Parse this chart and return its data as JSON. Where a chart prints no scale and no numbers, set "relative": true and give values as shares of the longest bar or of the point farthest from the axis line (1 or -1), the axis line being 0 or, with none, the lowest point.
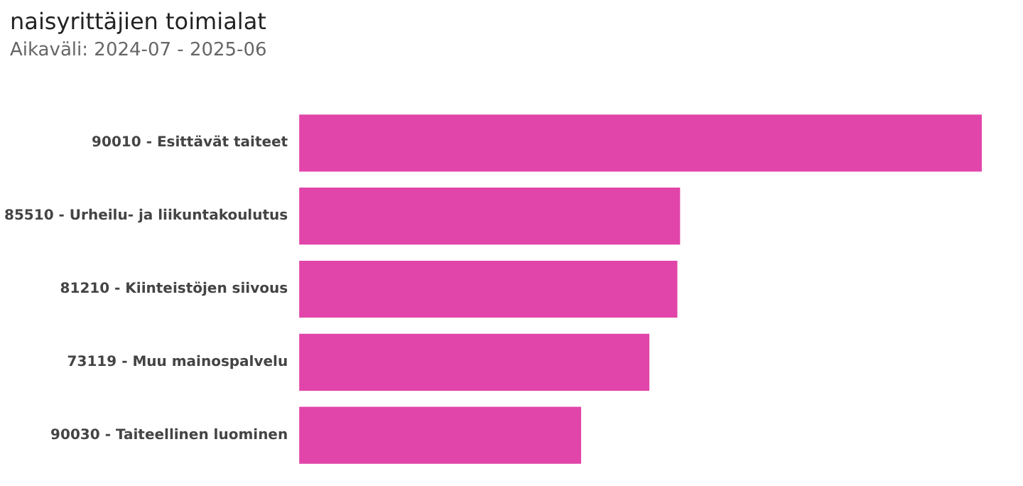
{
  "chart_data": {
    "type": "bar",
    "orientation": "horizontal",
    "relative": true,
    "title": "naisyrittäjien toimialat",
    "subtitle": "Aikaväli: 2024-07 - 2025-06",
    "categories": [
      "90010 - Esittävät taiteet",
      "85510 - Urheilu- ja liikuntakoulutus",
      "81210 - Kiinteistöjen siivous",
      "73119 - Muu mainospalvelu",
      "90030 - Taiteellinen luominen"
    ],
    "values": [
      1,
      0.558,
      0.554,
      0.513,
      0.413
    ],
    "color": "#e145a9"
  }
}
